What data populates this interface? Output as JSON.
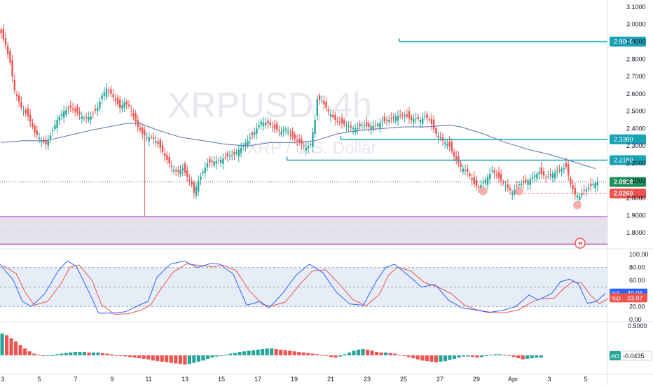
{
  "chart_data": {
    "type": "candlestick",
    "symbol": "XRPUSD",
    "interval": "4h",
    "watermark_symbol": "XRPUSD, 4h",
    "watermark_desc": "XRP / U.S. Dollar",
    "x_ticks": [
      "3",
      "5",
      "7",
      "9",
      "11",
      "13",
      "15",
      "17",
      "19",
      "21",
      "23",
      "25",
      "27",
      "29",
      "Apr",
      "3",
      "5"
    ],
    "price_axis": {
      "ticks": [
        "3.1000",
        "3.0000",
        "2.9000",
        "2.8000",
        "2.7000",
        "2.6000",
        "2.5000",
        "2.4000",
        "2.3000",
        "2.2000",
        "2.1000",
        "2.0000",
        "1.9000",
        "1.8000"
      ],
      "range": [
        1.72,
        3.14
      ]
    },
    "candle_path": [
      [
        0,
        2.95
      ],
      [
        2,
        2.88
      ],
      [
        4,
        2.78
      ],
      [
        6,
        2.62
      ],
      [
        9,
        2.52
      ],
      [
        12,
        2.47
      ],
      [
        15,
        2.38
      ],
      [
        18,
        2.33
      ],
      [
        20,
        2.31
      ],
      [
        22,
        2.36
      ],
      [
        25,
        2.45
      ],
      [
        28,
        2.5
      ],
      [
        31,
        2.52
      ],
      [
        34,
        2.49
      ],
      [
        37,
        2.46
      ],
      [
        40,
        2.47
      ],
      [
        43,
        2.52
      ],
      [
        45,
        2.59
      ],
      [
        47,
        2.63
      ],
      [
        49,
        2.6
      ],
      [
        51,
        2.56
      ],
      [
        53,
        2.52
      ],
      [
        55,
        2.55
      ],
      [
        57,
        2.53
      ],
      [
        59,
        2.47
      ],
      [
        61,
        2.41
      ],
      [
        63,
        2.37
      ],
      [
        65,
        2.35
      ],
      [
        67,
        2.35
      ],
      [
        69,
        2.33
      ],
      [
        71,
        2.29
      ],
      [
        73,
        2.24
      ],
      [
        75,
        2.2
      ],
      [
        77,
        2.16
      ],
      [
        79,
        2.15
      ],
      [
        81,
        2.17
      ],
      [
        83,
        2.12
      ],
      [
        85,
        2.08
      ],
      [
        86,
        2.03
      ],
      [
        88,
        2.1
      ],
      [
        90,
        2.15
      ],
      [
        92,
        2.2
      ],
      [
        95,
        2.21
      ],
      [
        98,
        2.22
      ],
      [
        101,
        2.24
      ],
      [
        104,
        2.25
      ],
      [
        107,
        2.29
      ],
      [
        110,
        2.33
      ],
      [
        113,
        2.38
      ],
      [
        116,
        2.44
      ],
      [
        119,
        2.43
      ],
      [
        122,
        2.4
      ],
      [
        125,
        2.38
      ],
      [
        127,
        2.4
      ],
      [
        130,
        2.35
      ],
      [
        133,
        2.32
      ],
      [
        136,
        2.29
      ],
      [
        138,
        2.31
      ],
      [
        140,
        2.45
      ],
      [
        141,
        2.57
      ],
      [
        143,
        2.56
      ],
      [
        146,
        2.5
      ],
      [
        149,
        2.45
      ],
      [
        152,
        2.43
      ],
      [
        155,
        2.41
      ],
      [
        158,
        2.4
      ],
      [
        161,
        2.42
      ],
      [
        164,
        2.41
      ],
      [
        167,
        2.42
      ],
      [
        170,
        2.44
      ],
      [
        173,
        2.45
      ],
      [
        176,
        2.47
      ],
      [
        179,
        2.48
      ],
      [
        181,
        2.47
      ],
      [
        183,
        2.45
      ],
      [
        185,
        2.46
      ],
      [
        187,
        2.45
      ],
      [
        189,
        2.47
      ],
      [
        191,
        2.45
      ],
      [
        194,
        2.37
      ],
      [
        197,
        2.33
      ],
      [
        200,
        2.3
      ],
      [
        202,
        2.24
      ],
      [
        205,
        2.18
      ],
      [
        208,
        2.15
      ],
      [
        211,
        2.08
      ],
      [
        213,
        2.06
      ],
      [
        215,
        2.09
      ],
      [
        217,
        2.12
      ],
      [
        219,
        2.16
      ],
      [
        221,
        2.13
      ],
      [
        223,
        2.1
      ],
      [
        226,
        2.06
      ],
      [
        228,
        2.03
      ],
      [
        231,
        2.08
      ],
      [
        234,
        2.09
      ],
      [
        237,
        2.12
      ],
      [
        240,
        2.15
      ],
      [
        243,
        2.12
      ],
      [
        246,
        2.14
      ],
      [
        249,
        2.16
      ],
      [
        252,
        2.18
      ],
      [
        254,
        2.08
      ],
      [
        256,
        2.02
      ],
      [
        258,
        2.01
      ],
      [
        260,
        2.04
      ],
      [
        262,
        2.06
      ],
      [
        264,
        2.08
      ],
      [
        266,
        2.093
      ]
    ],
    "moving_average": [
      [
        0,
        2.32
      ],
      [
        10,
        2.33
      ],
      [
        20,
        2.33
      ],
      [
        30,
        2.36
      ],
      [
        40,
        2.39
      ],
      [
        48,
        2.41
      ],
      [
        56,
        2.43
      ],
      [
        62,
        2.43
      ],
      [
        70,
        2.39
      ],
      [
        80,
        2.35
      ],
      [
        90,
        2.33
      ],
      [
        100,
        2.31
      ],
      [
        110,
        2.3
      ],
      [
        120,
        2.32
      ],
      [
        130,
        2.32
      ],
      [
        140,
        2.33
      ],
      [
        150,
        2.37
      ],
      [
        160,
        2.39
      ],
      [
        170,
        2.4
      ],
      [
        180,
        2.41
      ],
      [
        190,
        2.41
      ],
      [
        200,
        2.42
      ],
      [
        205,
        2.41
      ],
      [
        215,
        2.37
      ],
      [
        225,
        2.32
      ],
      [
        235,
        2.28
      ],
      [
        245,
        2.25
      ],
      [
        255,
        2.21
      ],
      [
        265,
        2.17
      ]
    ],
    "horizontal_levels": [
      {
        "price": 2.9,
        "label": "2.9000",
        "from_bar": 178
      },
      {
        "price": 2.338,
        "label": "2.3380",
        "from_bar": 152
      },
      {
        "price": 2.218,
        "label": "2.2180",
        "from_bar": 128
      }
    ],
    "support_level": {
      "price": 2.026,
      "label": "2.0260",
      "from_bar": 228
    },
    "current_price": {
      "price": 2.0928,
      "label": "2.0928"
    },
    "zone": {
      "from": 1.735,
      "to": 1.893
    },
    "bottom_markers": [
      {
        "bar": 215,
        "price": 2.04
      },
      {
        "bar": 231,
        "price": 2.04
      },
      {
        "bar": 257,
        "price": 1.96
      }
    ],
    "stochastic": {
      "axis_ticks": [
        "100.00",
        "80.00",
        "60.00",
        "40.00",
        "20.00",
        "0.00"
      ],
      "band": [
        20,
        80
      ],
      "k_label": "%K",
      "d_label": "%D",
      "k_value": "40.06",
      "d_value": "33.97",
      "k_path": [
        [
          0,
          85
        ],
        [
          6,
          60
        ],
        [
          10,
          28
        ],
        [
          14,
          20
        ],
        [
          20,
          40
        ],
        [
          26,
          75
        ],
        [
          30,
          90
        ],
        [
          34,
          82
        ],
        [
          40,
          40
        ],
        [
          44,
          10
        ],
        [
          50,
          10
        ],
        [
          56,
          12
        ],
        [
          62,
          22
        ],
        [
          66,
          28
        ],
        [
          70,
          65
        ],
        [
          76,
          85
        ],
        [
          82,
          90
        ],
        [
          88,
          80
        ],
        [
          94,
          86
        ],
        [
          98,
          85
        ],
        [
          104,
          70
        ],
        [
          110,
          22
        ],
        [
          116,
          28
        ],
        [
          120,
          18
        ],
        [
          126,
          40
        ],
        [
          132,
          68
        ],
        [
          138,
          85
        ],
        [
          144,
          72
        ],
        [
          150,
          42
        ],
        [
          156,
          24
        ],
        [
          162,
          22
        ],
        [
          168,
          60
        ],
        [
          172,
          80
        ],
        [
          176,
          85
        ],
        [
          182,
          68
        ],
        [
          188,
          50
        ],
        [
          194,
          54
        ],
        [
          200,
          30
        ],
        [
          206,
          18
        ],
        [
          212,
          15
        ],
        [
          218,
          11
        ],
        [
          224,
          14
        ],
        [
          230,
          20
        ],
        [
          236,
          38
        ],
        [
          240,
          30
        ],
        [
          246,
          40
        ],
        [
          250,
          58
        ],
        [
          254,
          62
        ],
        [
          258,
          55
        ],
        [
          262,
          25
        ],
        [
          266,
          28
        ],
        [
          270,
          40
        ]
      ]
    },
    "awesome_oscillator": {
      "axis_ticks": [
        "0.5000",
        "0.0000"
      ],
      "label": "AO",
      "value": "-0.0435",
      "bars": [
        0.38,
        0.35,
        0.3,
        0.24,
        0.18,
        0.12,
        0.07,
        0.03,
        0.01,
        -0.01,
        -0.01,
        0.0,
        0.02,
        0.03,
        0.04,
        0.05,
        0.06,
        0.06,
        0.06,
        0.05,
        0.05,
        0.05,
        0.04,
        0.03,
        0.02,
        0.0,
        -0.01,
        -0.02,
        -0.03,
        -0.04,
        -0.05,
        -0.06,
        -0.07,
        -0.09,
        -0.1,
        -0.11,
        -0.12,
        -0.13,
        -0.14,
        -0.15,
        -0.16,
        -0.15,
        -0.13,
        -0.11,
        -0.09,
        -0.06,
        -0.04,
        -0.02,
        0.0,
        0.01,
        0.03,
        0.04,
        0.06,
        0.07,
        0.08,
        0.09,
        0.1,
        0.11,
        0.12,
        0.12,
        0.11,
        0.1,
        0.09,
        0.08,
        0.07,
        0.06,
        0.05,
        0.04,
        0.03,
        0.02,
        0.01,
        -0.01,
        -0.03,
        -0.04,
        -0.02,
        0.02,
        0.05,
        0.08,
        0.1,
        0.11,
        0.1,
        0.08,
        0.06,
        0.05,
        0.05,
        0.04,
        0.03,
        0.01,
        -0.01,
        -0.03,
        -0.05,
        -0.07,
        -0.09,
        -0.1,
        -0.11,
        -0.12,
        -0.11,
        -0.1,
        -0.08,
        -0.06,
        -0.04,
        -0.02,
        -0.02,
        -0.03,
        -0.04,
        -0.03,
        -0.01,
        0.01,
        0.02,
        0.02,
        0.01,
        -0.01,
        -0.03,
        -0.05,
        -0.07,
        -0.06,
        -0.05,
        -0.04,
        -0.04
      ]
    },
    "colors": {
      "up": "#26a69a",
      "down": "#ef5350",
      "ma": "#5b6fb0",
      "level": "#1aa2b6",
      "support": "#ef5350",
      "zone": "#e6e2ec",
      "zone_border": "#9c27b0",
      "stoch_k": "#2962ff",
      "stoch_d": "#ef5350",
      "stoch_band": "#dbe6f2",
      "price_tag": "#1e8e5a",
      "support_tag": "#ef5350",
      "grid": "#f0f3fa"
    }
  }
}
